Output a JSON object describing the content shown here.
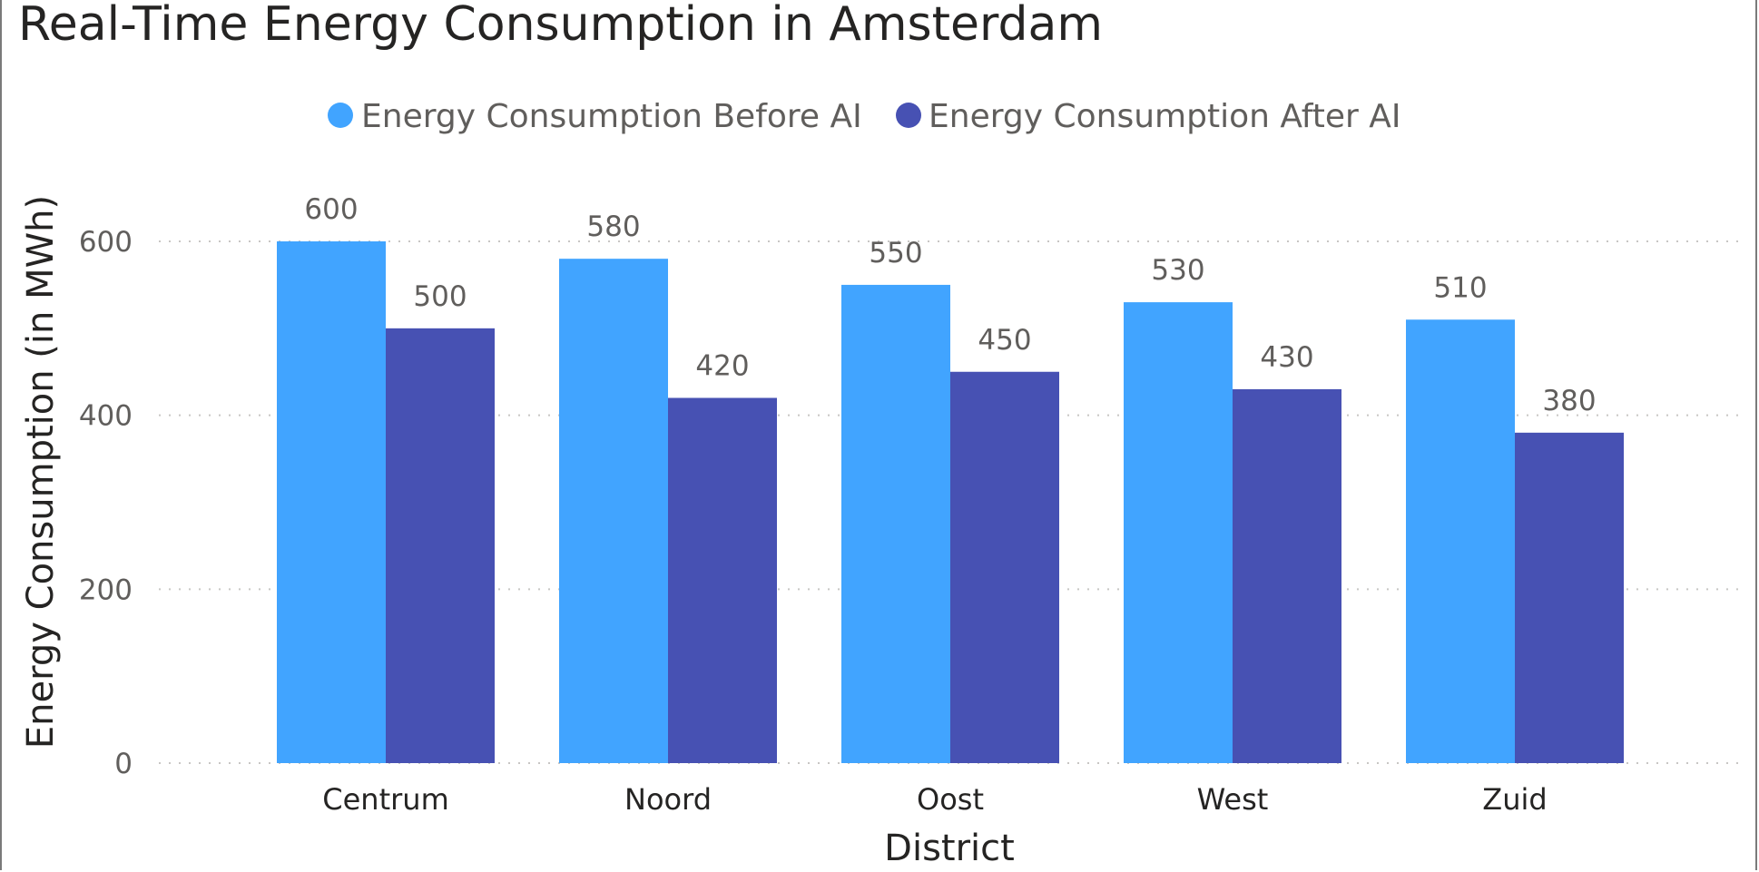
{
  "chart_data": {
    "type": "bar",
    "title": "Real-Time Energy Consumption in Amsterdam",
    "xlabel": "District",
    "ylabel": "Energy Consumption (in MWh)",
    "categories": [
      "Centrum",
      "Noord",
      "Oost",
      "West",
      "Zuid"
    ],
    "series": [
      {
        "name": "Energy Consumption Before AI",
        "color": "#41a4ff",
        "values": [
          600,
          580,
          550,
          530,
          510
        ]
      },
      {
        "name": "Energy Consumption After AI",
        "color": "#4751b3",
        "values": [
          500,
          420,
          450,
          430,
          380
        ]
      }
    ],
    "ylim": [
      0,
      600
    ],
    "yticks": [
      0,
      200,
      400,
      600
    ],
    "grid": true,
    "legend": "top-center"
  }
}
